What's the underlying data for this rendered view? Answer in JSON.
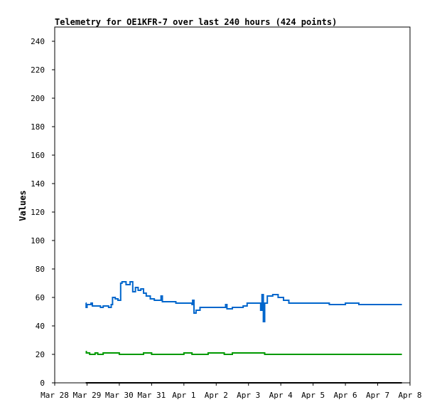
{
  "chart_data": {
    "type": "line",
    "title": "Telemetry for OE1KFR-7 over last 240 hours (424 points)",
    "xlabel": "",
    "ylabel": "Values",
    "xlim": [
      "2024-03-28",
      "2024-04-08"
    ],
    "ylim": [
      0,
      250
    ],
    "x_tick_labels": [
      "Mar 28",
      "Mar 29",
      "Mar 30",
      "Mar 31",
      "Apr 1",
      "Apr 2",
      "Apr 3",
      "Apr 4",
      "Apr 5",
      "Apr 6",
      "Apr 7",
      "Apr 8"
    ],
    "y_ticks": [
      0,
      20,
      40,
      60,
      80,
      100,
      120,
      140,
      160,
      180,
      200,
      220,
      240
    ],
    "grid": false,
    "series": [
      {
        "color": "#0066cc",
        "points": [
          [
            "2024-03-28 23:00",
            56
          ],
          [
            "2024-03-28 23:20",
            53
          ],
          [
            "2024-03-29 00:00",
            55
          ],
          [
            "2024-03-29 03:00",
            56
          ],
          [
            "2024-03-29 04:00",
            54
          ],
          [
            "2024-03-29 10:00",
            53
          ],
          [
            "2024-03-29 12:00",
            54
          ],
          [
            "2024-03-29 16:00",
            53
          ],
          [
            "2024-03-29 18:00",
            55
          ],
          [
            "2024-03-29 19:00",
            60
          ],
          [
            "2024-03-29 21:00",
            59
          ],
          [
            "2024-03-29 23:00",
            58
          ],
          [
            "2024-03-30 01:00",
            70
          ],
          [
            "2024-03-30 02:00",
            71
          ],
          [
            "2024-03-30 05:00",
            69
          ],
          [
            "2024-03-30 08:00",
            71
          ],
          [
            "2024-03-30 10:00",
            64
          ],
          [
            "2024-03-30 12:00",
            67
          ],
          [
            "2024-03-30 14:00",
            65
          ],
          [
            "2024-03-30 16:00",
            66
          ],
          [
            "2024-03-30 18:00",
            63
          ],
          [
            "2024-03-30 20:00",
            61
          ],
          [
            "2024-03-30 23:00",
            59
          ],
          [
            "2024-03-31 02:00",
            58
          ],
          [
            "2024-03-31 06:00",
            58
          ],
          [
            "2024-03-31 07:00",
            61
          ],
          [
            "2024-03-31 08:00",
            57
          ],
          [
            "2024-03-31 18:00",
            56
          ],
          [
            "2024-04-01 00:00",
            56
          ],
          [
            "2024-04-01 06:00",
            55
          ],
          [
            "2024-04-01 06:30",
            58
          ],
          [
            "2024-04-01 07:30",
            49
          ],
          [
            "2024-04-01 09:00",
            51
          ],
          [
            "2024-04-01 12:00",
            53
          ],
          [
            "2024-04-01 18:00",
            53
          ],
          [
            "2024-04-02 00:00",
            53
          ],
          [
            "2024-04-02 06:00",
            53
          ],
          [
            "2024-04-02 07:00",
            55
          ],
          [
            "2024-04-02 08:00",
            52
          ],
          [
            "2024-04-02 12:00",
            53
          ],
          [
            "2024-04-02 20:00",
            54
          ],
          [
            "2024-04-02 23:00",
            56
          ],
          [
            "2024-04-03 08:00",
            56
          ],
          [
            "2024-04-03 09:00",
            51
          ],
          [
            "2024-04-03 10:00",
            62
          ],
          [
            "2024-04-03 11:00",
            43
          ],
          [
            "2024-04-03 12:00",
            56
          ],
          [
            "2024-04-03 14:00",
            61
          ],
          [
            "2024-04-03 18:00",
            62
          ],
          [
            "2024-04-03 22:00",
            60
          ],
          [
            "2024-04-04 02:00",
            58
          ],
          [
            "2024-04-04 06:00",
            56
          ],
          [
            "2024-04-04 12:00",
            56
          ],
          [
            "2024-04-05 06:00",
            56
          ],
          [
            "2024-04-05 12:00",
            55
          ],
          [
            "2024-04-05 18:00",
            55
          ],
          [
            "2024-04-06 00:00",
            56
          ],
          [
            "2024-04-06 06:00",
            56
          ],
          [
            "2024-04-06 10:00",
            55
          ],
          [
            "2024-04-07 00:00",
            55
          ],
          [
            "2024-04-07 18:00",
            55
          ]
        ]
      },
      {
        "color": "#009900",
        "points": [
          [
            "2024-03-28 23:00",
            22
          ],
          [
            "2024-03-28 23:30",
            21
          ],
          [
            "2024-03-29 02:00",
            20
          ],
          [
            "2024-03-29 06:00",
            21
          ],
          [
            "2024-03-29 08:00",
            20
          ],
          [
            "2024-03-29 12:00",
            21
          ],
          [
            "2024-03-29 16:00",
            21
          ],
          [
            "2024-03-29 20:00",
            21
          ],
          [
            "2024-03-30 00:00",
            20
          ],
          [
            "2024-03-30 06:00",
            20
          ],
          [
            "2024-03-30 12:00",
            20
          ],
          [
            "2024-03-30 18:00",
            21
          ],
          [
            "2024-03-31 00:00",
            20
          ],
          [
            "2024-03-31 06:00",
            20
          ],
          [
            "2024-03-31 12:00",
            20
          ],
          [
            "2024-04-01 00:00",
            21
          ],
          [
            "2024-04-01 06:00",
            20
          ],
          [
            "2024-04-01 12:00",
            20
          ],
          [
            "2024-04-01 18:00",
            21
          ],
          [
            "2024-04-02 06:00",
            20
          ],
          [
            "2024-04-02 12:00",
            21
          ],
          [
            "2024-04-03 00:00",
            21
          ],
          [
            "2024-04-03 12:00",
            20
          ],
          [
            "2024-04-04 00:00",
            20
          ],
          [
            "2024-04-05 00:00",
            20
          ],
          [
            "2024-04-06 00:00",
            20
          ],
          [
            "2024-04-07 00:00",
            20
          ],
          [
            "2024-04-07 18:00",
            20
          ]
        ]
      },
      {
        "color": "#000000",
        "points": [
          [
            "2024-03-28 23:00",
            0
          ],
          [
            "2024-04-07 18:00",
            0
          ]
        ]
      }
    ]
  }
}
